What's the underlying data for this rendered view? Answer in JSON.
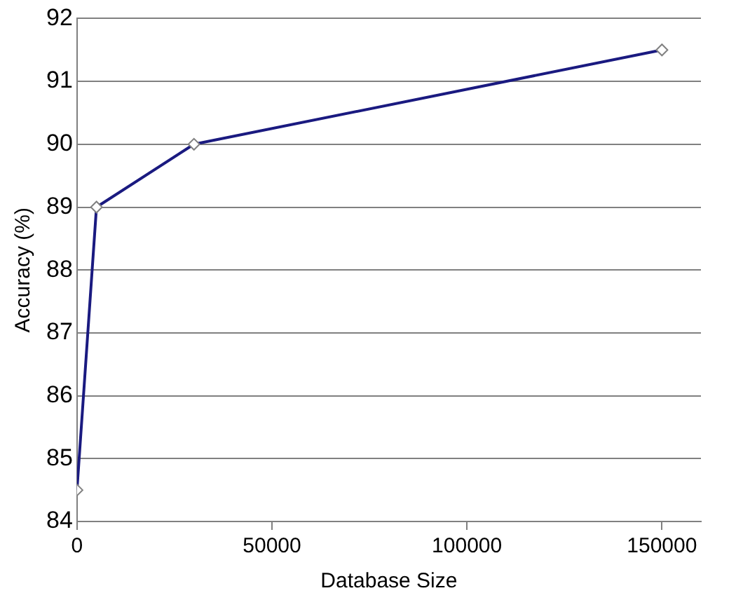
{
  "chart_data": {
    "type": "line",
    "xlabel": "Database Size",
    "ylabel": "Accuracy (%)",
    "x": [
      0,
      5000,
      30000,
      150000
    ],
    "series": [
      {
        "color": "#1a1a80",
        "values": [
          84.5,
          89,
          90,
          91.5
        ]
      }
    ],
    "xlim": [
      0,
      160000
    ],
    "xticks": [
      0,
      50000,
      100000,
      150000
    ],
    "ylim": [
      84,
      92
    ],
    "yticks": [
      84,
      85,
      86,
      87,
      88,
      89,
      90,
      91,
      92
    ],
    "grid": "y",
    "legend": false,
    "marker": "diamond",
    "line_style": "solid"
  }
}
